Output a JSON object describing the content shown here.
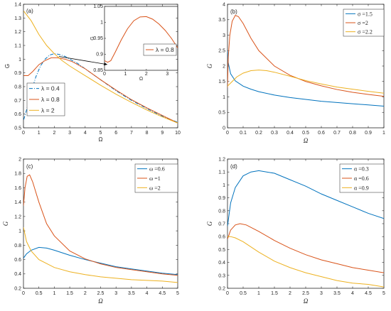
{
  "colors": {
    "blue": "#0072BD",
    "orange": "#D95319",
    "yellow": "#EDB120"
  },
  "chart_data": [
    {
      "id": "a",
      "type": "line",
      "panel_label": "(a)",
      "title": "",
      "xlabel": "Ω",
      "ylabel": "G",
      "xlim": [
        0,
        10
      ],
      "ylim": [
        0.5,
        1.4
      ],
      "xticks": [
        "0",
        "1",
        "2",
        "3",
        "4",
        "5",
        "6",
        "7",
        "8",
        "9",
        "10"
      ],
      "yticks": [
        "0.5",
        "0.6",
        "0.7",
        "0.8",
        "0.9",
        "1",
        "1.1",
        "1.2",
        "1.3",
        "1.4"
      ],
      "legend_position": "lower-left",
      "series": [
        {
          "name": "λ = 0.4",
          "color": "#0072BD",
          "dash": "5,2,1,2",
          "points": [
            [
              0.02,
              0.56
            ],
            [
              0.2,
              0.63
            ],
            [
              0.5,
              0.76
            ],
            [
              0.8,
              0.87
            ],
            [
              1.1,
              0.95
            ],
            [
              1.4,
              1.0
            ],
            [
              1.7,
              1.03
            ],
            [
              2.0,
              1.04
            ],
            [
              2.3,
              1.035
            ],
            [
              2.7,
              1.02
            ],
            [
              3.0,
              1.0
            ],
            [
              3.5,
              0.97
            ],
            [
              4,
              0.93
            ],
            [
              5,
              0.85
            ],
            [
              6,
              0.77
            ],
            [
              7,
              0.7
            ],
            [
              8,
              0.64
            ],
            [
              9,
              0.585
            ],
            [
              10,
              0.54
            ]
          ]
        },
        {
          "name": "λ = 0.8",
          "color": "#D95319",
          "dash": "",
          "points": [
            [
              0.02,
              0.88
            ],
            [
              0.3,
              0.88
            ],
            [
              0.6,
              0.91
            ],
            [
              1.0,
              0.96
            ],
            [
              1.4,
              0.99
            ],
            [
              1.8,
              1.01
            ],
            [
              2.2,
              1.01
            ],
            [
              2.7,
              1.0
            ],
            [
              3.2,
              0.98
            ],
            [
              4,
              0.93
            ],
            [
              5,
              0.85
            ],
            [
              6,
              0.775
            ],
            [
              7,
              0.705
            ],
            [
              8,
              0.645
            ],
            [
              9,
              0.59
            ],
            [
              10,
              0.535
            ]
          ]
        },
        {
          "name": "λ = 2",
          "color": "#EDB120",
          "dash": "",
          "points": [
            [
              0.02,
              1.35
            ],
            [
              0.5,
              1.28
            ],
            [
              1.0,
              1.18
            ],
            [
              1.5,
              1.1
            ],
            [
              2.0,
              1.04
            ],
            [
              2.5,
              0.99
            ],
            [
              3.0,
              0.95
            ],
            [
              4,
              0.88
            ],
            [
              5,
              0.81
            ],
            [
              6,
              0.745
            ],
            [
              7,
              0.685
            ],
            [
              8,
              0.63
            ],
            [
              9,
              0.58
            ],
            [
              10,
              0.535
            ]
          ]
        }
      ],
      "inset": {
        "xlabel": "Ω",
        "ylabel": "G",
        "xlim": [
          0,
          3.5
        ],
        "ylim": [
          0.85,
          1.05
        ],
        "xticks": [
          "0",
          "1",
          "2",
          "3"
        ],
        "yticks": [
          "0.85",
          "0.9",
          "0.95",
          "1",
          "1.05"
        ],
        "series": [
          {
            "name": "λ = 0.8",
            "color": "#D95319",
            "points": [
              [
                0.0,
                0.88
              ],
              [
                0.15,
                0.875
              ],
              [
                0.3,
                0.88
              ],
              [
                0.5,
                0.905
              ],
              [
                0.8,
                0.945
              ],
              [
                1.1,
                0.98
              ],
              [
                1.4,
                1.005
              ],
              [
                1.7,
                1.017
              ],
              [
                2.0,
                1.018
              ],
              [
                2.3,
                1.01
              ],
              [
                2.6,
                0.995
              ],
              [
                2.9,
                0.975
              ],
              [
                3.2,
                0.95
              ],
              [
                3.5,
                0.92
              ]
            ]
          }
        ]
      }
    },
    {
      "id": "b",
      "type": "line",
      "panel_label": "(b)",
      "title": "",
      "xlabel": "Ω",
      "ylabel": "G",
      "xlim": [
        0,
        1
      ],
      "ylim": [
        0,
        4
      ],
      "xticks": [
        "0",
        "0.1",
        "0.2",
        "0.3",
        "0.4",
        "0.5",
        "0.6",
        "0.7",
        "0.8",
        "0.9",
        "1"
      ],
      "yticks": [
        "0",
        "0.5",
        "1",
        "1.5",
        "2",
        "2.5",
        "3",
        "3.5",
        "4"
      ],
      "legend_position": "top-right",
      "series": [
        {
          "name": "σ =1.5",
          "color": "#0072BD",
          "dash": "",
          "points": [
            [
              0.0,
              2.5
            ],
            [
              0.005,
              2.1
            ],
            [
              0.02,
              1.75
            ],
            [
              0.05,
              1.52
            ],
            [
              0.1,
              1.35
            ],
            [
              0.15,
              1.25
            ],
            [
              0.2,
              1.17
            ],
            [
              0.3,
              1.06
            ],
            [
              0.4,
              0.98
            ],
            [
              0.5,
              0.92
            ],
            [
              0.6,
              0.86
            ],
            [
              0.7,
              0.82
            ],
            [
              0.8,
              0.78
            ],
            [
              0.9,
              0.74
            ],
            [
              1.0,
              0.7
            ]
          ]
        },
        {
          "name": "σ =2",
          "color": "#D95319",
          "dash": "",
          "points": [
            [
              0.0,
              1.3
            ],
            [
              0.005,
              2.3
            ],
            [
              0.015,
              3.0
            ],
            [
              0.03,
              3.45
            ],
            [
              0.05,
              3.64
            ],
            [
              0.07,
              3.6
            ],
            [
              0.1,
              3.38
            ],
            [
              0.15,
              2.9
            ],
            [
              0.2,
              2.5
            ],
            [
              0.3,
              2.0
            ],
            [
              0.4,
              1.7
            ],
            [
              0.5,
              1.5
            ],
            [
              0.6,
              1.36
            ],
            [
              0.7,
              1.24
            ],
            [
              0.8,
              1.15
            ],
            [
              0.9,
              1.08
            ],
            [
              1.0,
              1.02
            ]
          ]
        },
        {
          "name": "σ =2.2",
          "color": "#EDB120",
          "dash": "",
          "points": [
            [
              0.0,
              1.35
            ],
            [
              0.03,
              1.5
            ],
            [
              0.06,
              1.65
            ],
            [
              0.1,
              1.77
            ],
            [
              0.15,
              1.85
            ],
            [
              0.2,
              1.87
            ],
            [
              0.25,
              1.85
            ],
            [
              0.3,
              1.8
            ],
            [
              0.4,
              1.67
            ],
            [
              0.5,
              1.53
            ],
            [
              0.6,
              1.42
            ],
            [
              0.7,
              1.32
            ],
            [
              0.8,
              1.25
            ],
            [
              0.9,
              1.18
            ],
            [
              1.0,
              1.12
            ]
          ]
        }
      ]
    },
    {
      "id": "c",
      "type": "line",
      "panel_label": "(c)",
      "title": "",
      "xlabel": "Ω",
      "ylabel": "G",
      "xlim": [
        0,
        5
      ],
      "ylim": [
        0.2,
        2.0
      ],
      "xticks": [
        "0",
        "0.5",
        "1",
        "1.5",
        "2",
        "2.5",
        "3",
        "3.5",
        "4",
        "4.5",
        "5"
      ],
      "yticks": [
        "0.2",
        "0.4",
        "0.6",
        "0.8",
        "1",
        "1.2",
        "1.4",
        "1.6",
        "1.8",
        "2"
      ],
      "legend_position": "top-right",
      "series": [
        {
          "name": "ω =0.6",
          "color": "#0072BD",
          "dash": "",
          "points": [
            [
              0.0,
              0.62
            ],
            [
              0.1,
              0.68
            ],
            [
              0.25,
              0.73
            ],
            [
              0.5,
              0.77
            ],
            [
              0.75,
              0.76
            ],
            [
              1.0,
              0.73
            ],
            [
              1.5,
              0.66
            ],
            [
              2.0,
              0.6
            ],
            [
              2.5,
              0.55
            ],
            [
              3.0,
              0.5
            ],
            [
              3.5,
              0.47
            ],
            [
              4.0,
              0.44
            ],
            [
              4.5,
              0.41
            ],
            [
              5.0,
              0.39
            ]
          ]
        },
        {
          "name": "ω =1",
          "color": "#D95319",
          "dash": "",
          "points": [
            [
              0.0,
              1.35
            ],
            [
              0.05,
              1.6
            ],
            [
              0.12,
              1.76
            ],
            [
              0.2,
              1.78
            ],
            [
              0.3,
              1.68
            ],
            [
              0.5,
              1.4
            ],
            [
              0.75,
              1.1
            ],
            [
              1.0,
              0.93
            ],
            [
              1.5,
              0.72
            ],
            [
              2.0,
              0.61
            ],
            [
              2.5,
              0.54
            ],
            [
              3.0,
              0.49
            ],
            [
              3.5,
              0.46
            ],
            [
              4.0,
              0.43
            ],
            [
              4.5,
              0.4
            ],
            [
              5.0,
              0.38
            ]
          ]
        },
        {
          "name": "ω =2",
          "color": "#EDB120",
          "dash": "",
          "points": [
            [
              0.0,
              1.05
            ],
            [
              0.1,
              0.85
            ],
            [
              0.25,
              0.72
            ],
            [
              0.5,
              0.6
            ],
            [
              1.0,
              0.49
            ],
            [
              1.5,
              0.43
            ],
            [
              2.0,
              0.39
            ],
            [
              2.5,
              0.36
            ],
            [
              3.0,
              0.34
            ],
            [
              3.5,
              0.32
            ],
            [
              4.0,
              0.31
            ],
            [
              4.5,
              0.3
            ],
            [
              5.0,
              0.28
            ]
          ]
        }
      ]
    },
    {
      "id": "d",
      "type": "line",
      "panel_label": "(d)",
      "title": "",
      "xlabel": "Ω",
      "ylabel": "G",
      "xlim": [
        0,
        5
      ],
      "ylim": [
        0.2,
        1.2
      ],
      "xticks": [
        "0",
        "0.5",
        "1",
        "1.5",
        "2",
        "2.5",
        "3",
        "3.5",
        "4",
        "4.5",
        "5"
      ],
      "yticks": [
        "0.2",
        "0.3",
        "0.4",
        "0.5",
        "0.6",
        "0.7",
        "0.8",
        "0.9",
        "1",
        "1.1",
        "1.2"
      ],
      "legend_position": "top-right",
      "series": [
        {
          "name": "α =0.3",
          "color": "#0072BD",
          "dash": "",
          "points": [
            [
              0.0,
              0.68
            ],
            [
              0.1,
              0.86
            ],
            [
              0.25,
              0.98
            ],
            [
              0.5,
              1.07
            ],
            [
              0.75,
              1.1
            ],
            [
              1.0,
              1.11
            ],
            [
              1.5,
              1.09
            ],
            [
              2.0,
              1.04
            ],
            [
              2.5,
              0.99
            ],
            [
              3.0,
              0.93
            ],
            [
              3.5,
              0.88
            ],
            [
              4.0,
              0.83
            ],
            [
              4.5,
              0.78
            ],
            [
              5.0,
              0.74
            ]
          ]
        },
        {
          "name": "α =0.6",
          "color": "#D95319",
          "dash": "",
          "points": [
            [
              0.0,
              0.58
            ],
            [
              0.1,
              0.65
            ],
            [
              0.25,
              0.69
            ],
            [
              0.4,
              0.7
            ],
            [
              0.6,
              0.69
            ],
            [
              1.0,
              0.64
            ],
            [
              1.5,
              0.57
            ],
            [
              2.0,
              0.51
            ],
            [
              2.5,
              0.46
            ],
            [
              3.0,
              0.42
            ],
            [
              3.5,
              0.39
            ],
            [
              4.0,
              0.36
            ],
            [
              4.5,
              0.34
            ],
            [
              5.0,
              0.32
            ]
          ]
        },
        {
          "name": "α =0.9",
          "color": "#EDB120",
          "dash": "",
          "points": [
            [
              0.0,
              0.6
            ],
            [
              0.1,
              0.6
            ],
            [
              0.25,
              0.59
            ],
            [
              0.5,
              0.56
            ],
            [
              1.0,
              0.48
            ],
            [
              1.5,
              0.41
            ],
            [
              2.0,
              0.36
            ],
            [
              2.5,
              0.32
            ],
            [
              3.0,
              0.29
            ],
            [
              3.5,
              0.26
            ],
            [
              4.0,
              0.24
            ],
            [
              4.5,
              0.23
            ],
            [
              5.0,
              0.21
            ]
          ]
        }
      ]
    }
  ]
}
